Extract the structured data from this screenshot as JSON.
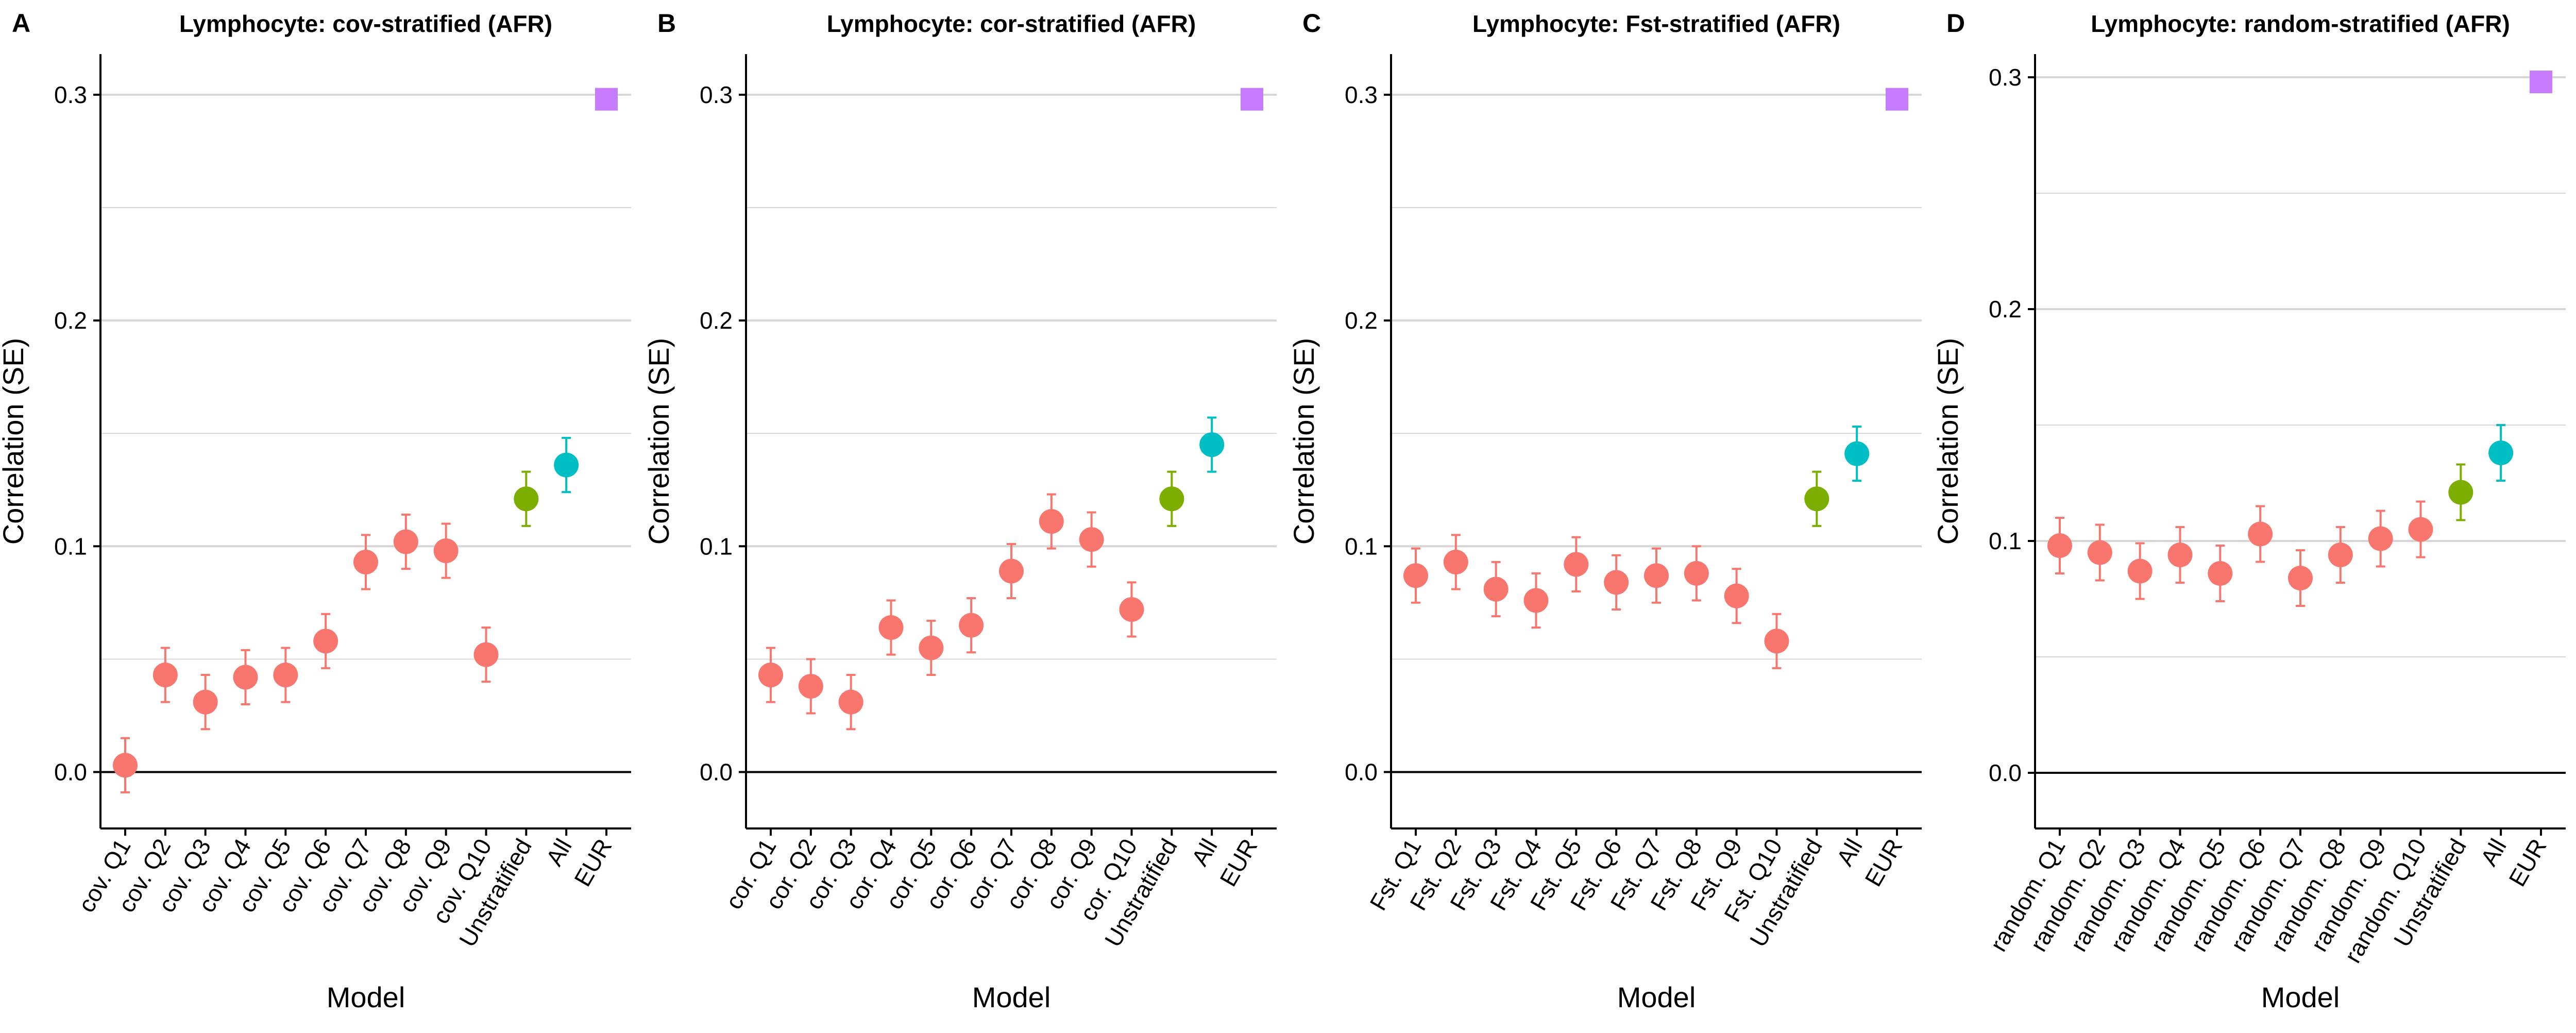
{
  "colors": {
    "quantile": "#F8766D",
    "unstratified": "#7CAE00",
    "all": "#00BFC4",
    "eur": "#C77CFF",
    "zero_line": "#000000",
    "grid": "#d6d6d6"
  },
  "chart_data": [
    {
      "panel": "A",
      "type": "scatter",
      "title": "Lymphocyte: cov-stratified (AFR)",
      "xlabel": "Model",
      "ylabel": "Correlation (SE)",
      "ylim": [
        -0.025,
        0.318
      ],
      "yticks": [
        "0.0",
        "0.1",
        "0.2",
        "0.3"
      ],
      "grid": true,
      "categories": [
        "cov. Q1",
        "cov. Q2",
        "cov. Q3",
        "cov. Q4",
        "cov. Q5",
        "cov. Q6",
        "cov. Q7",
        "cov. Q8",
        "cov. Q9",
        "cov. Q10",
        "Unstratified",
        "All",
        "EUR"
      ],
      "values": [
        0.003,
        0.043,
        0.031,
        0.042,
        0.043,
        0.058,
        0.093,
        0.102,
        0.098,
        0.052,
        0.121,
        0.136,
        0.298
      ],
      "se": [
        0.012,
        0.012,
        0.012,
        0.012,
        0.012,
        0.012,
        0.012,
        0.012,
        0.012,
        0.012,
        0.012,
        0.012,
        0
      ],
      "groups": [
        "quantile",
        "quantile",
        "quantile",
        "quantile",
        "quantile",
        "quantile",
        "quantile",
        "quantile",
        "quantile",
        "quantile",
        "unstratified",
        "all",
        "eur"
      ]
    },
    {
      "panel": "B",
      "type": "scatter",
      "title": "Lymphocyte: cor-stratified (AFR)",
      "xlabel": "Model",
      "ylabel": "Correlation (SE)",
      "ylim": [
        -0.025,
        0.318
      ],
      "yticks": [
        "0.0",
        "0.1",
        "0.2",
        "0.3"
      ],
      "grid": true,
      "categories": [
        "cor. Q1",
        "cor. Q2",
        "cor. Q3",
        "cor. Q4",
        "cor. Q5",
        "cor. Q6",
        "cor. Q7",
        "cor. Q8",
        "cor. Q9",
        "cor. Q10",
        "Unstratified",
        "All",
        "EUR"
      ],
      "values": [
        0.043,
        0.038,
        0.031,
        0.064,
        0.055,
        0.065,
        0.089,
        0.111,
        0.103,
        0.072,
        0.121,
        0.145,
        0.298
      ],
      "se": [
        0.012,
        0.012,
        0.012,
        0.012,
        0.012,
        0.012,
        0.012,
        0.012,
        0.012,
        0.012,
        0.012,
        0.012,
        0
      ],
      "groups": [
        "quantile",
        "quantile",
        "quantile",
        "quantile",
        "quantile",
        "quantile",
        "quantile",
        "quantile",
        "quantile",
        "quantile",
        "unstratified",
        "all",
        "eur"
      ]
    },
    {
      "panel": "C",
      "type": "scatter",
      "title": "Lymphocyte: Fst-stratified (AFR)",
      "xlabel": "Model",
      "ylabel": "Correlation (SE)",
      "ylim": [
        -0.025,
        0.318
      ],
      "yticks": [
        "0.0",
        "0.1",
        "0.2",
        "0.3"
      ],
      "grid": true,
      "categories": [
        "Fst. Q1",
        "Fst. Q2",
        "Fst. Q3",
        "Fst. Q4",
        "Fst. Q5",
        "Fst. Q6",
        "Fst. Q7",
        "Fst. Q8",
        "Fst. Q9",
        "Fst. Q10",
        "Unstratified",
        "All",
        "EUR"
      ],
      "values": [
        0.087,
        0.093,
        0.081,
        0.076,
        0.092,
        0.084,
        0.087,
        0.088,
        0.078,
        0.058,
        0.121,
        0.141,
        0.298
      ],
      "se": [
        0.012,
        0.012,
        0.012,
        0.012,
        0.012,
        0.012,
        0.012,
        0.012,
        0.012,
        0.012,
        0.012,
        0.012,
        0
      ],
      "groups": [
        "quantile",
        "quantile",
        "quantile",
        "quantile",
        "quantile",
        "quantile",
        "quantile",
        "quantile",
        "quantile",
        "quantile",
        "unstratified",
        "all",
        "eur"
      ]
    },
    {
      "panel": "D",
      "type": "scatter",
      "title": "Lymphocyte: random-stratified (AFR)",
      "xlabel": "Model",
      "ylabel": "Correlation (SE)",
      "ylim": [
        -0.024,
        0.31
      ],
      "yticks": [
        "0.0",
        "0.1",
        "0.2",
        "0.3"
      ],
      "grid": true,
      "categories": [
        "random. Q1",
        "random. Q2",
        "random. Q3",
        "random. Q4",
        "random. Q5",
        "random. Q6",
        "random. Q7",
        "random. Q8",
        "random. Q9",
        "random. Q10",
        "Unstratified",
        "All",
        "EUR"
      ],
      "values": [
        0.098,
        0.095,
        0.087,
        0.094,
        0.086,
        0.103,
        0.084,
        0.094,
        0.101,
        0.105,
        0.121,
        0.138,
        0.298
      ],
      "se": [
        0.012,
        0.012,
        0.012,
        0.012,
        0.012,
        0.012,
        0.012,
        0.012,
        0.012,
        0.012,
        0.012,
        0.012,
        0
      ],
      "groups": [
        "quantile",
        "quantile",
        "quantile",
        "quantile",
        "quantile",
        "quantile",
        "quantile",
        "quantile",
        "quantile",
        "quantile",
        "unstratified",
        "all",
        "eur"
      ]
    }
  ]
}
